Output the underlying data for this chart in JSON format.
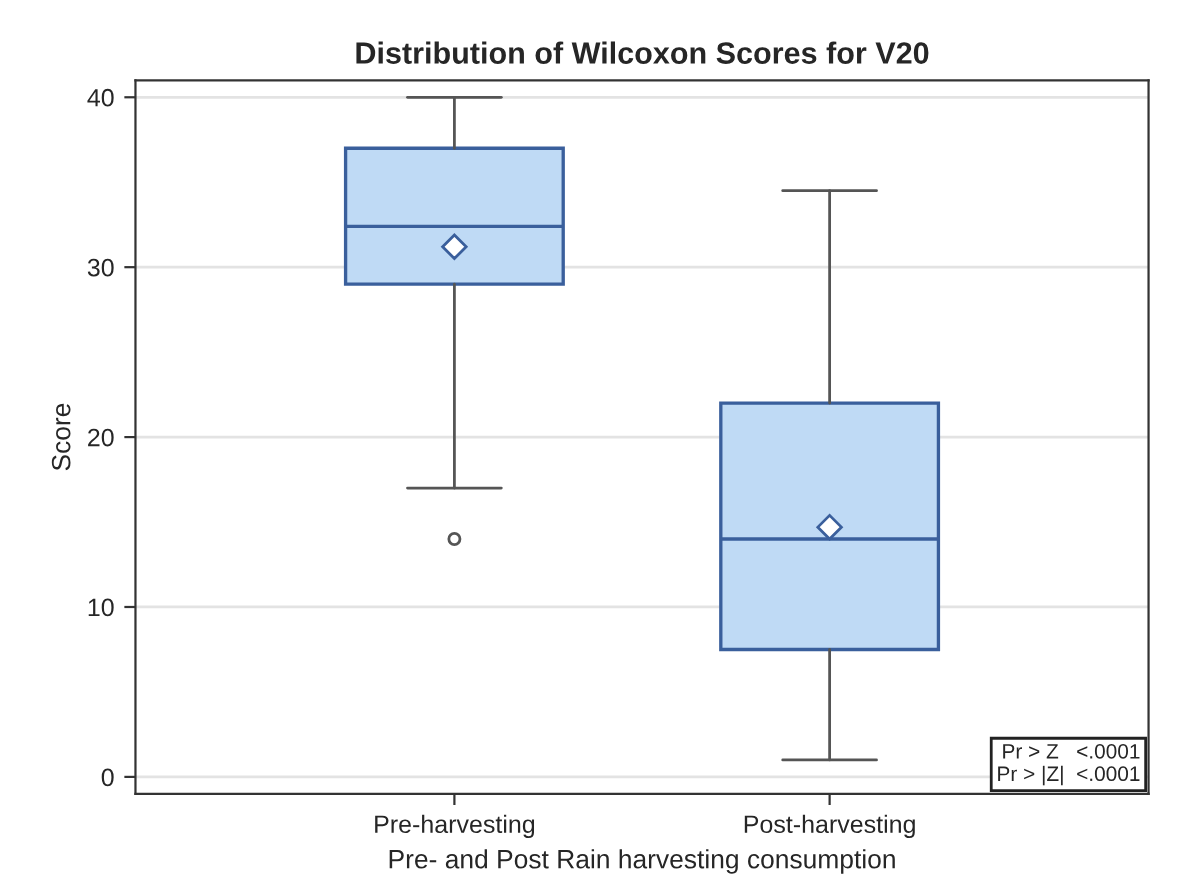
{
  "chart_data": {
    "type": "box",
    "title": "Distribution of Wilcoxon Scores for V20",
    "xlabel": "Pre- and Post Rain harvesting consumption",
    "ylabel": "Score",
    "categories": [
      "Pre-harvesting",
      "Post-harvesting"
    ],
    "boxes": [
      {
        "low": 17,
        "q1": 29,
        "median": 32.4,
        "q3": 37,
        "high": 40,
        "mean": 31.2,
        "outliers": [
          14
        ]
      },
      {
        "low": 1,
        "q1": 7.5,
        "median": 14,
        "q3": 22,
        "high": 34.5,
        "mean": 14.7
      }
    ],
    "color": "#bfdaf5",
    "ylim": [
      -1,
      41
    ],
    "yticks": [
      0,
      10,
      20,
      30,
      40
    ],
    "grid": "y",
    "annotations": [
      "Pr > Z   <.0001",
      "Pr > |Z|  <.0001"
    ]
  }
}
